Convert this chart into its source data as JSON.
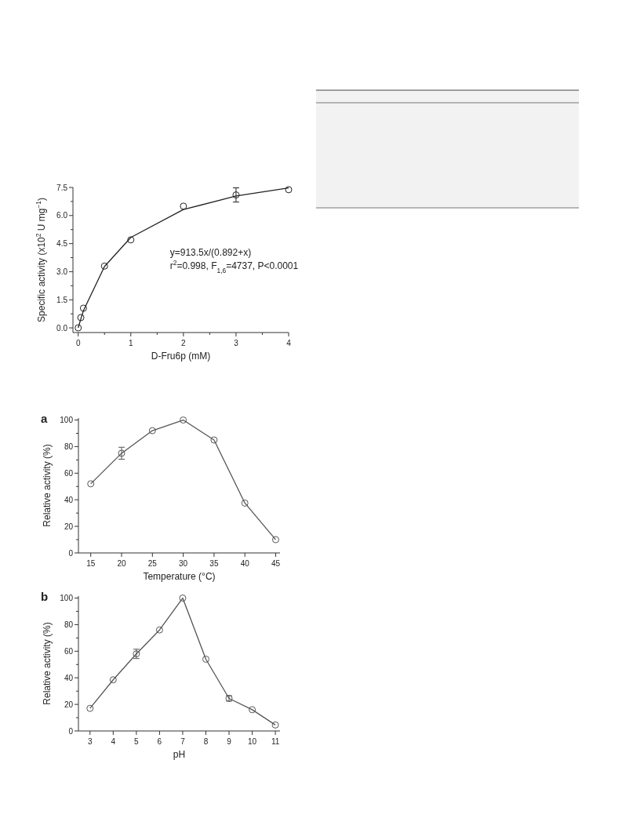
{
  "chart_data": [
    {
      "type": "scatter",
      "xlabel": "D-Fru6p (mM)",
      "ylabel": "Specific activity (x10$^{2}$ U mg$^{−1}$)",
      "xlim": [
        -0.1,
        4
      ],
      "ylim": [
        -0.25,
        7.5
      ],
      "xticks": [
        0,
        {
          "value": 0.5,
          "label": null
        },
        1,
        {
          "value": 1.5,
          "label": null
        },
        2,
        {
          "value": 2.5,
          "label": null
        },
        3,
        {
          "value": 3.5,
          "label": null
        },
        4
      ],
      "yticks": [
        {
          "value": 0,
          "label": "0.0"
        },
        {
          "value": 0.75,
          "label": null
        },
        1.5,
        {
          "value": 2.25,
          "label": null
        },
        {
          "value": 3,
          "label": "3.0"
        },
        {
          "value": 3.75,
          "label": null
        },
        4.5,
        {
          "value": 5.25,
          "label": null
        },
        {
          "value": 6,
          "label": "6.0"
        },
        {
          "value": 6.75,
          "label": null
        },
        7.5
      ],
      "annotations": [
        "y=913.5x/(0.892+x)",
        "r$^{2}$=0.998, F$_{1,6}$=4737, P<0.0001"
      ],
      "series": [
        {
          "marker": "circle",
          "color": "#222222",
          "x": [
            0,
            0.05,
            0.1,
            0.5,
            1,
            2,
            3,
            4
          ],
          "values": [
            0,
            0.55,
            1.05,
            3.3,
            4.7,
            6.5,
            7.1,
            7.38
          ],
          "errors": [
            null,
            null,
            null,
            null,
            null,
            null,
            0.38,
            null
          ]
        },
        {
          "type": "line",
          "marker": "none",
          "color": "#222222",
          "x": [
            0,
            0.05,
            0.1,
            0.5,
            1,
            2,
            3,
            4
          ],
          "values": [
            0,
            0.48,
            0.92,
            3.28,
            4.83,
            6.32,
            7.04,
            7.47
          ]
        }
      ]
    },
    {
      "type": "line",
      "title": "a",
      "xlabel": "Temperature (°C)",
      "ylabel": "Relative activity (%)",
      "xlim": [
        13,
        45.7
      ],
      "ylim": [
        0,
        101.5
      ],
      "xticks": [
        15,
        20,
        25,
        30,
        35,
        40,
        45
      ],
      "yticks": [
        0,
        {
          "value": 10,
          "label": null
        },
        20,
        {
          "value": 30,
          "label": null
        },
        40,
        {
          "value": 50,
          "label": null
        },
        60,
        {
          "value": 70,
          "label": null
        },
        80,
        {
          "value": 90,
          "label": null
        },
        100
      ],
      "series": [
        {
          "marker": "circle",
          "color": "#555555",
          "x": [
            15,
            20,
            25,
            30,
            35,
            40,
            45
          ],
          "values": [
            52,
            75,
            92,
            100,
            85,
            37.5,
            10
          ],
          "errors": [
            null,
            4.5,
            null,
            null,
            null,
            null,
            null
          ]
        }
      ]
    },
    {
      "type": "line",
      "title": "b",
      "xlabel": "pH",
      "ylabel": "Relative activity (%)",
      "xlim": [
        2.5,
        11.2
      ],
      "ylim": [
        0,
        101.5
      ],
      "xticks": [
        3,
        4,
        5,
        6,
        7,
        8,
        9,
        10,
        11
      ],
      "yticks": [
        0,
        {
          "value": 10,
          "label": null
        },
        20,
        {
          "value": 30,
          "label": null
        },
        40,
        {
          "value": 50,
          "label": null
        },
        60,
        {
          "value": 70,
          "label": null
        },
        80,
        {
          "value": 90,
          "label": null
        },
        100
      ],
      "series": [
        {
          "marker": "circle",
          "color": "#555555",
          "x": [
            3,
            4,
            5,
            6,
            7,
            8,
            9,
            10,
            11
          ],
          "values": [
            17,
            38.5,
            58,
            76,
            100,
            54,
            24.5,
            16,
            4.5
          ],
          "errors": [
            null,
            null,
            3.5,
            null,
            null,
            null,
            2,
            null,
            null
          ]
        }
      ]
    }
  ]
}
